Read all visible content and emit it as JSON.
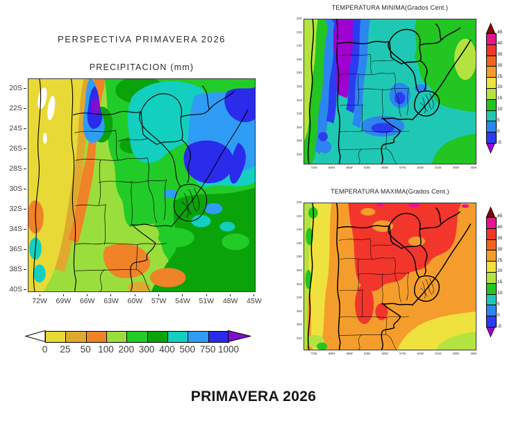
{
  "page": {
    "background": "#ffffff",
    "footer_title": "PRIMAVERA 2026"
  },
  "axes": {
    "lat_ticks": [
      "20S",
      "22S",
      "24S",
      "26S",
      "28S",
      "30S",
      "32S",
      "34S",
      "36S",
      "38S",
      "40S"
    ],
    "lon_ticks": [
      "72W",
      "69W",
      "66W",
      "63W",
      "60W",
      "57W",
      "54W",
      "51W",
      "48W",
      "45W"
    ]
  },
  "precip_panel": {
    "title": "PERSPECTIVA PRIMAVERA 2026",
    "subtitle": "PRECIPITACION (mm)",
    "colorbar": {
      "labels": [
        "0",
        "25",
        "50",
        "100",
        "200",
        "300",
        "400",
        "500",
        "750",
        "1000"
      ],
      "segment_colors": [
        "#e9d936",
        "#dfa92f",
        "#f08228",
        "#9ade3d",
        "#22cc28",
        "#0aa30a",
        "#13cfc0",
        "#2f9df5",
        "#2b2bec"
      ],
      "below_min_color": "#ffffff",
      "above_max_color": "#7c0fd0"
    }
  },
  "temp_min_panel": {
    "title": "TEMPERATURA MINIMA(Grados Cent.)"
  },
  "temp_max_panel": {
    "title": "TEMPERATURA MAXIMA(Grados Cent.)"
  },
  "temp_colorbar": {
    "labels": [
      "45",
      "40",
      "35",
      "30",
      "25",
      "20",
      "15",
      "10",
      "5",
      "0",
      "-5"
    ],
    "segment_colors": [
      "#e8148c",
      "#f2362c",
      "#f2641c",
      "#f59d2c",
      "#f0e23e",
      "#b4e341",
      "#22c522",
      "#1fc8b4",
      "#2d86f0",
      "#2b3cf0"
    ],
    "above_max_color": "#8e0000",
    "below_min_color": "#a000d0"
  }
}
